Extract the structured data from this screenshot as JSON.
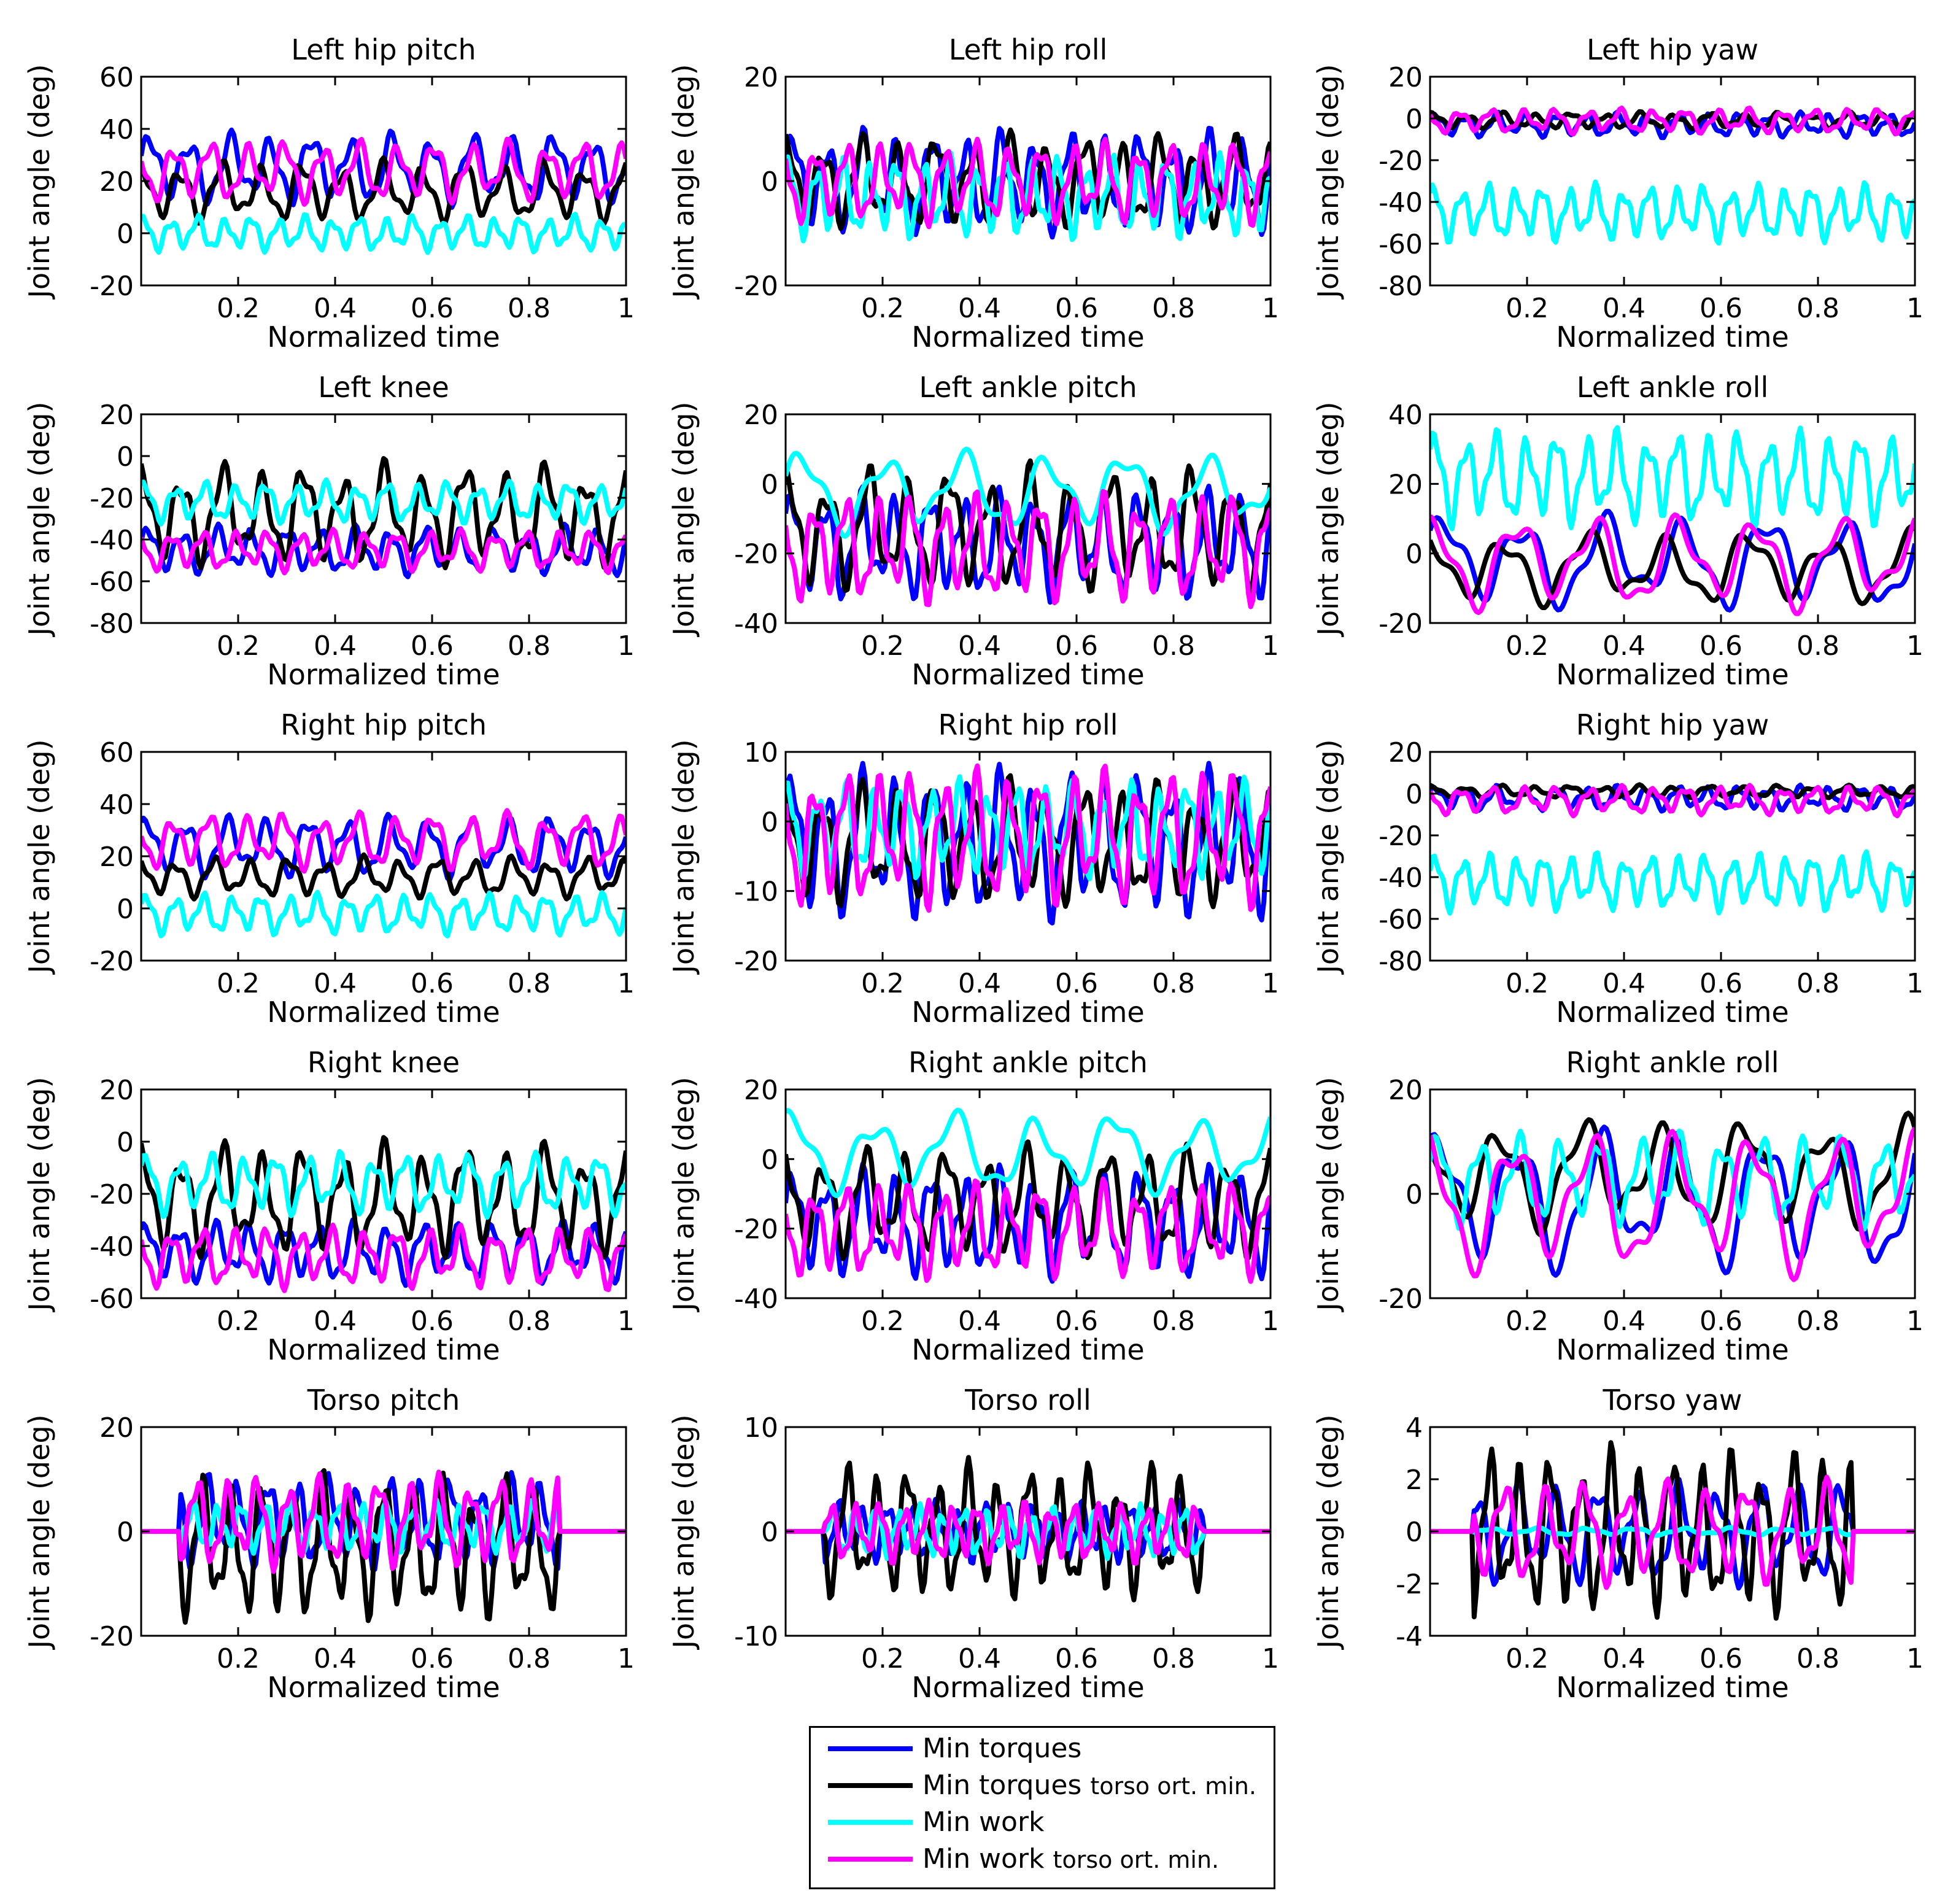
{
  "figure": {
    "xlabel": "Normalized time",
    "ylabel": "Joint angle (deg)"
  },
  "legend": {
    "items": [
      {
        "label": "Min torques",
        "suffix": "",
        "color": "#0000ff"
      },
      {
        "label": "Min torques",
        "suffix": "torso ort. min.",
        "color": "#000000"
      },
      {
        "label": "Min work",
        "suffix": "",
        "color": "#00ffff"
      },
      {
        "label": "Min work",
        "suffix": "torso ort. min.",
        "color": "#ff00ff"
      }
    ]
  },
  "chart_data": [
    {
      "type": "line",
      "title": "Left hip pitch",
      "xlabel": "Normalized time",
      "ylabel": "Joint angle (deg)",
      "xlim": [
        0,
        1
      ],
      "ylim": [
        -20,
        60
      ],
      "yticks": [
        -20,
        0,
        20,
        40,
        60
      ],
      "xticks": [
        0.2,
        0.4,
        0.6,
        0.8,
        1
      ],
      "xticklabels": [
        "0.2",
        "0.4",
        "0.6",
        "0.8",
        "1"
      ],
      "series": [
        {
          "name": "Min torques",
          "color": "#0000ff",
          "base": 25,
          "amp": 14,
          "freq": 12,
          "phase": 0.3
        },
        {
          "name": "Min torques torso ort. min.",
          "color": "#000000",
          "base": 16,
          "amp": 12,
          "freq": 12,
          "phase": 1.7
        },
        {
          "name": "Min work",
          "color": "#00ffff",
          "base": 0,
          "amp": 7,
          "freq": 18,
          "phase": 0.9
        },
        {
          "name": "Min work torso ort. min.",
          "color": "#ff00ff",
          "base": 24,
          "amp": 12,
          "freq": 13,
          "phase": 2.4
        }
      ]
    },
    {
      "type": "line",
      "title": "Left hip roll",
      "xlabel": "Normalized time",
      "ylabel": "Joint angle (deg)",
      "xlim": [
        0,
        1
      ],
      "ylim": [
        -20,
        20
      ],
      "yticks": [
        -20,
        0,
        20
      ],
      "xticks": [
        0.2,
        0.4,
        0.6,
        0.8,
        1
      ],
      "xticklabels": [
        "0.2",
        "0.4",
        "0.6",
        "0.8",
        "1"
      ],
      "series": [
        {
          "name": "Min torques",
          "color": "#0000ff",
          "base": 0,
          "amp": 10,
          "freq": 14,
          "phase": 0.2
        },
        {
          "name": "Min torques torso ort. min.",
          "color": "#000000",
          "base": 0,
          "amp": 9,
          "freq": 13,
          "phase": 1.4
        },
        {
          "name": "Min work",
          "color": "#00ffff",
          "base": -3,
          "amp": 8,
          "freq": 18,
          "phase": 0.7
        },
        {
          "name": "Min work torso ort. min.",
          "color": "#ff00ff",
          "base": 0,
          "amp": 8,
          "freq": 15,
          "phase": 2.1
        }
      ]
    },
    {
      "type": "line",
      "title": "Left hip yaw",
      "xlabel": "Normalized time",
      "ylabel": "Joint angle (deg)",
      "xlim": [
        0,
        1
      ],
      "ylim": [
        -80,
        20
      ],
      "yticks": [
        -80,
        -60,
        -40,
        -20,
        0,
        20
      ],
      "xticks": [
        0.2,
        0.4,
        0.6,
        0.8,
        1
      ],
      "xticklabels": [
        "0.2",
        "0.4",
        "0.6",
        "0.8",
        "1"
      ],
      "series": [
        {
          "name": "Min torques",
          "color": "#0000ff",
          "base": -3,
          "amp": 6,
          "freq": 16,
          "phase": 0.4
        },
        {
          "name": "Min torques torso ort. min.",
          "color": "#000000",
          "base": -1,
          "amp": 4,
          "freq": 14,
          "phase": 1.1
        },
        {
          "name": "Min work",
          "color": "#00ffff",
          "base": -45,
          "amp": 14,
          "freq": 18,
          "phase": 0.5
        },
        {
          "name": "Min work torso ort. min.",
          "color": "#ff00ff",
          "base": -1,
          "amp": 6,
          "freq": 15,
          "phase": 2.2
        }
      ]
    },
    {
      "type": "line",
      "title": "Left knee",
      "xlabel": "Normalized time",
      "ylabel": "Joint angle (deg)",
      "xlim": [
        0,
        1
      ],
      "ylim": [
        -80,
        20
      ],
      "yticks": [
        -80,
        -60,
        -40,
        -20,
        0,
        20
      ],
      "xticks": [
        0.2,
        0.4,
        0.6,
        0.8,
        1
      ],
      "xticklabels": [
        "0.2",
        "0.4",
        "0.6",
        "0.8",
        "1"
      ],
      "series": [
        {
          "name": "Min torques",
          "color": "#0000ff",
          "base": -45,
          "amp": 12,
          "freq": 14,
          "phase": 0.3
        },
        {
          "name": "Min torques torso ort. min.",
          "color": "#000000",
          "base": -28,
          "amp": 25,
          "freq": 12,
          "phase": 1.5
        },
        {
          "name": "Min work",
          "color": "#00ffff",
          "base": -22,
          "amp": 10,
          "freq": 16,
          "phase": 0.8
        },
        {
          "name": "Min work torso ort. min.",
          "color": "#ff00ff",
          "base": -45,
          "amp": 10,
          "freq": 15,
          "phase": 2.0
        }
      ]
    },
    {
      "type": "line",
      "title": "Left ankle pitch",
      "xlabel": "Normalized time",
      "ylabel": "Joint angle (deg)",
      "xlim": [
        0,
        1
      ],
      "ylim": [
        -40,
        20
      ],
      "yticks": [
        -40,
        -20,
        0,
        20
      ],
      "xticks": [
        0.2,
        0.4,
        0.6,
        0.8,
        1
      ],
      "xticklabels": [
        "0.2",
        "0.4",
        "0.6",
        "0.8",
        "1"
      ],
      "series": [
        {
          "name": "Min torques",
          "color": "#0000ff",
          "base": -17,
          "amp": 16,
          "freq": 14,
          "phase": 0.5
        },
        {
          "name": "Min torques torso ort. min.",
          "color": "#000000",
          "base": -13,
          "amp": 18,
          "freq": 12,
          "phase": 1.3
        },
        {
          "name": "Min work",
          "color": "#00ffff",
          "base": -2,
          "amp": 12,
          "freq": 6,
          "phase": 0.2
        },
        {
          "name": "Min work torso ort. min.",
          "color": "#ff00ff",
          "base": -18,
          "amp": 16,
          "freq": 15,
          "phase": 2.3
        }
      ]
    },
    {
      "type": "line",
      "title": "Left ankle roll",
      "xlabel": "Normalized time",
      "ylabel": "Joint angle (deg)",
      "xlim": [
        0,
        1
      ],
      "ylim": [
        -20,
        40
      ],
      "yticks": [
        -20,
        0,
        20,
        40
      ],
      "xticks": [
        0.2,
        0.4,
        0.6,
        0.8,
        1
      ],
      "xticklabels": [
        "0.2",
        "0.4",
        "0.6",
        "0.8",
        "1"
      ],
      "series": [
        {
          "name": "Min torques",
          "color": "#0000ff",
          "base": -2,
          "amp": 14,
          "freq": 6,
          "phase": 0.6
        },
        {
          "name": "Min torques torso ort. min.",
          "color": "#000000",
          "base": -4,
          "amp": 11,
          "freq": 6,
          "phase": 2.0
        },
        {
          "name": "Min work",
          "color": "#00ffff",
          "base": 22,
          "amp": 14,
          "freq": 16,
          "phase": 0.4
        },
        {
          "name": "Min work torso ort. min.",
          "color": "#ff00ff",
          "base": -2,
          "amp": 14,
          "freq": 6,
          "phase": 1.2
        }
      ]
    },
    {
      "type": "line",
      "title": "Right hip pitch",
      "xlabel": "Normalized time",
      "ylabel": "Joint angle (deg)",
      "xlim": [
        0,
        1
      ],
      "ylim": [
        -20,
        60
      ],
      "yticks": [
        -20,
        0,
        20,
        40,
        60
      ],
      "xticks": [
        0.2,
        0.4,
        0.6,
        0.8,
        1
      ],
      "xticklabels": [
        "0.2",
        "0.4",
        "0.6",
        "0.8",
        "1"
      ],
      "series": [
        {
          "name": "Min torques",
          "color": "#0000ff",
          "base": 24,
          "amp": 12,
          "freq": 12,
          "phase": 0.8
        },
        {
          "name": "Min torques torso ort. min.",
          "color": "#000000",
          "base": 12,
          "amp": 8,
          "freq": 13,
          "phase": 1.9
        },
        {
          "name": "Min work",
          "color": "#00ffff",
          "base": -2,
          "amp": 8,
          "freq": 17,
          "phase": 0.3
        },
        {
          "name": "Min work torso ort. min.",
          "color": "#ff00ff",
          "base": 26,
          "amp": 11,
          "freq": 13,
          "phase": 2.6
        }
      ]
    },
    {
      "type": "line",
      "title": "Right hip roll",
      "xlabel": "Normalized time",
      "ylabel": "Joint angle (deg)",
      "xlim": [
        0,
        1
      ],
      "ylim": [
        -20,
        10
      ],
      "yticks": [
        -20,
        -10,
        0,
        10
      ],
      "xticks": [
        0.2,
        0.4,
        0.6,
        0.8,
        1
      ],
      "xticklabels": [
        "0.2",
        "0.4",
        "0.6",
        "0.8",
        "1"
      ],
      "series": [
        {
          "name": "Min torques",
          "color": "#0000ff",
          "base": -3,
          "amp": 11,
          "freq": 14,
          "phase": 0.4
        },
        {
          "name": "Min torques torso ort. min.",
          "color": "#000000",
          "base": -3,
          "amp": 9,
          "freq": 13,
          "phase": 1.6
        },
        {
          "name": "Min work",
          "color": "#00ffff",
          "base": -1,
          "amp": 7,
          "freq": 17,
          "phase": 0.9
        },
        {
          "name": "Min work torso ort. min.",
          "color": "#ff00ff",
          "base": -2,
          "amp": 10,
          "freq": 15,
          "phase": 2.2
        }
      ]
    },
    {
      "type": "line",
      "title": "Right hip yaw",
      "xlabel": "Normalized time",
      "ylabel": "Joint angle (deg)",
      "xlim": [
        0,
        1
      ],
      "ylim": [
        -80,
        20
      ],
      "yticks": [
        -80,
        -60,
        -40,
        -20,
        0,
        20
      ],
      "xticks": [
        0.2,
        0.4,
        0.6,
        0.8,
        1
      ],
      "xticklabels": [
        "0.2",
        "0.4",
        "0.6",
        "0.8",
        "1"
      ],
      "series": [
        {
          "name": "Min torques",
          "color": "#0000ff",
          "base": -2,
          "amp": 6,
          "freq": 16,
          "phase": 0.5
        },
        {
          "name": "Min torques torso ort. min.",
          "color": "#000000",
          "base": 1,
          "amp": 3,
          "freq": 14,
          "phase": 1.3
        },
        {
          "name": "Min work",
          "color": "#00ffff",
          "base": -42,
          "amp": 14,
          "freq": 18,
          "phase": 0.2
        },
        {
          "name": "Min work torso ort. min.",
          "color": "#ff00ff",
          "base": -3,
          "amp": 7,
          "freq": 15,
          "phase": 2.0
        }
      ]
    },
    {
      "type": "line",
      "title": "Right knee",
      "xlabel": "Normalized time",
      "ylabel": "Joint angle (deg)",
      "xlim": [
        0,
        1
      ],
      "ylim": [
        -60,
        20
      ],
      "yticks": [
        -60,
        -40,
        -20,
        0,
        20
      ],
      "xticks": [
        0.2,
        0.4,
        0.6,
        0.8,
        1
      ],
      "xticklabels": [
        "0.2",
        "0.4",
        "0.6",
        "0.8",
        "1"
      ],
      "series": [
        {
          "name": "Min torques",
          "color": "#0000ff",
          "base": -42,
          "amp": 12,
          "freq": 14,
          "phase": 0.7
        },
        {
          "name": "Min torques torso ort. min.",
          "color": "#000000",
          "base": -22,
          "amp": 22,
          "freq": 12,
          "phase": 1.5
        },
        {
          "name": "Min work",
          "color": "#00ffff",
          "base": -16,
          "amp": 12,
          "freq": 15,
          "phase": 0.4
        },
        {
          "name": "Min work torso ort. min.",
          "color": "#ff00ff",
          "base": -44,
          "amp": 12,
          "freq": 15,
          "phase": 2.1
        }
      ]
    },
    {
      "type": "line",
      "title": "Right ankle pitch",
      "xlabel": "Normalized time",
      "ylabel": "Joint angle (deg)",
      "xlim": [
        0,
        1
      ],
      "ylim": [
        -40,
        20
      ],
      "yticks": [
        -40,
        -20,
        0,
        20
      ],
      "xticks": [
        0.2,
        0.4,
        0.6,
        0.8,
        1
      ],
      "xticklabels": [
        "0.2",
        "0.4",
        "0.6",
        "0.8",
        "1"
      ],
      "series": [
        {
          "name": "Min torques",
          "color": "#0000ff",
          "base": -18,
          "amp": 16,
          "freq": 14,
          "phase": 0.3
        },
        {
          "name": "Min torques torso ort. min.",
          "color": "#000000",
          "base": -12,
          "amp": 16,
          "freq": 12,
          "phase": 1.8
        },
        {
          "name": "Min work",
          "color": "#00ffff",
          "base": 2,
          "amp": 12,
          "freq": 6,
          "phase": 1.0
        },
        {
          "name": "Min work torso ort. min.",
          "color": "#ff00ff",
          "base": -20,
          "amp": 14,
          "freq": 15,
          "phase": 2.4
        }
      ]
    },
    {
      "type": "line",
      "title": "Right ankle roll",
      "xlabel": "Normalized time",
      "ylabel": "Joint angle (deg)",
      "xlim": [
        0,
        1
      ],
      "ylim": [
        -20,
        20
      ],
      "yticks": [
        -20,
        0,
        20
      ],
      "xticks": [
        0.2,
        0.4,
        0.6,
        0.8,
        1
      ],
      "xticklabels": [
        "0.2",
        "0.4",
        "0.6",
        "0.8",
        "1"
      ],
      "series": [
        {
          "name": "Min torques",
          "color": "#0000ff",
          "base": -1,
          "amp": 14,
          "freq": 6,
          "phase": 0.9
        },
        {
          "name": "Min torques torso ort. min.",
          "color": "#000000",
          "base": 4,
          "amp": 11,
          "freq": 6,
          "phase": 2.3
        },
        {
          "name": "Min work",
          "color": "#00ffff",
          "base": 3,
          "amp": 9,
          "freq": 12,
          "phase": 0.2
        },
        {
          "name": "Min work torso ort. min.",
          "color": "#ff00ff",
          "base": -1,
          "amp": 14,
          "freq": 6,
          "phase": 1.5
        }
      ]
    },
    {
      "type": "line",
      "title": "Torso pitch",
      "xlabel": "Normalized time",
      "ylabel": "Joint angle (deg)",
      "xlim": [
        0,
        1
      ],
      "ylim": [
        -20,
        20
      ],
      "yticks": [
        -20,
        0,
        20
      ],
      "xticks": [
        0.2,
        0.4,
        0.6,
        0.8,
        1
      ],
      "xticklabels": [
        "0.2",
        "0.4",
        "0.6",
        "0.8",
        "1"
      ],
      "active": [
        0.08,
        0.86
      ],
      "series": [
        {
          "name": "Min torques",
          "color": "#0000ff",
          "base": 2,
          "amp": 9,
          "freq": 16,
          "phase": 0.4
        },
        {
          "name": "Min torques torso ort. min.",
          "color": "#000000",
          "base": -3,
          "amp": 14,
          "freq": 16,
          "phase": 1.6
        },
        {
          "name": "Min work",
          "color": "#00ffff",
          "base": 1,
          "amp": 5,
          "freq": 20,
          "phase": 0.6
        },
        {
          "name": "Min work torso ort. min.",
          "color": "#ff00ff",
          "base": 2,
          "amp": 9,
          "freq": 16,
          "phase": 2.5
        }
      ]
    },
    {
      "type": "line",
      "title": "Torso roll",
      "xlabel": "Normalized time",
      "ylabel": "Joint angle (deg)",
      "xlim": [
        0,
        1
      ],
      "ylim": [
        -10,
        10
      ],
      "yticks": [
        -10,
        0,
        10
      ],
      "xticks": [
        0.2,
        0.4,
        0.6,
        0.8,
        1
      ],
      "xticklabels": [
        "0.2",
        "0.4",
        "0.6",
        "0.8",
        "1"
      ],
      "active": [
        0.08,
        0.86
      ],
      "series": [
        {
          "name": "Min torques",
          "color": "#0000ff",
          "base": 0,
          "amp": 3,
          "freq": 20,
          "phase": 0.3
        },
        {
          "name": "Min torques torso ort. min.",
          "color": "#000000",
          "base": 0,
          "amp": 6.5,
          "freq": 16,
          "phase": 1.4
        },
        {
          "name": "Min work",
          "color": "#00ffff",
          "base": 0,
          "amp": 2.5,
          "freq": 22,
          "phase": 0.8
        },
        {
          "name": "Min work torso ort. min.",
          "color": "#ff00ff",
          "base": 0,
          "amp": 3,
          "freq": 20,
          "phase": 2.2
        }
      ]
    },
    {
      "type": "line",
      "title": "Torso yaw",
      "xlabel": "Normalized time",
      "ylabel": "Joint angle (deg)",
      "xlim": [
        0,
        1
      ],
      "ylim": [
        -4,
        4
      ],
      "yticks": [
        -4,
        -2,
        0,
        2,
        4
      ],
      "xticks": [
        0.2,
        0.4,
        0.6,
        0.8,
        1
      ],
      "xticklabels": [
        "0.2",
        "0.4",
        "0.6",
        "0.8",
        "1"
      ],
      "active": [
        0.09,
        0.87
      ],
      "series": [
        {
          "name": "Min torques",
          "color": "#0000ff",
          "base": 0,
          "amp": 2,
          "freq": 12,
          "phase": 0.6
        },
        {
          "name": "Min torques torso ort. min.",
          "color": "#000000",
          "base": 0,
          "amp": 3.2,
          "freq": 16,
          "phase": 1.8
        },
        {
          "name": "Min work",
          "color": "#00ffff",
          "base": 0,
          "amp": 0.15,
          "freq": 10,
          "phase": 0.2
        },
        {
          "name": "Min work torso ort. min.",
          "color": "#ff00ff",
          "base": 0,
          "amp": 2,
          "freq": 12,
          "phase": 2.5
        }
      ]
    }
  ]
}
